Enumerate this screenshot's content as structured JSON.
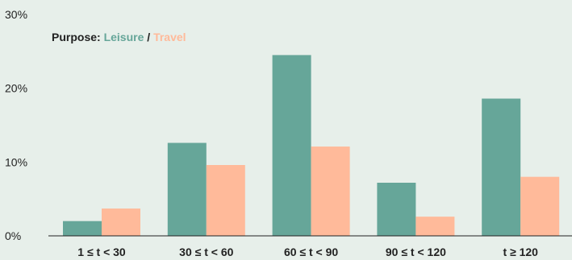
{
  "chart_data": {
    "type": "bar",
    "categories": [
      "1 ≤ t < 30",
      "30 ≤ t < 60",
      "60 ≤ t < 90",
      "90 ≤ t < 120",
      "t ≥ 120"
    ],
    "series": [
      {
        "name": "Leisure",
        "values": [
          2.0,
          12.6,
          24.5,
          7.2,
          18.6
        ],
        "color": "#66a699"
      },
      {
        "name": "Travel",
        "values": [
          3.7,
          9.6,
          12.1,
          2.6,
          8.0
        ],
        "color": "#ffba9a"
      }
    ],
    "ylim": [
      0,
      30
    ],
    "y_ticks": [
      "0%",
      "10%",
      "20%",
      "30%"
    ],
    "y_tick_values": [
      0,
      10,
      20,
      30
    ],
    "legend": {
      "prefix": "Purpose:",
      "separator": "/",
      "placement": "top-left"
    },
    "grid": false
  },
  "colors": {
    "background": "#e7efea",
    "text": "#222222",
    "axis": "#222222"
  }
}
